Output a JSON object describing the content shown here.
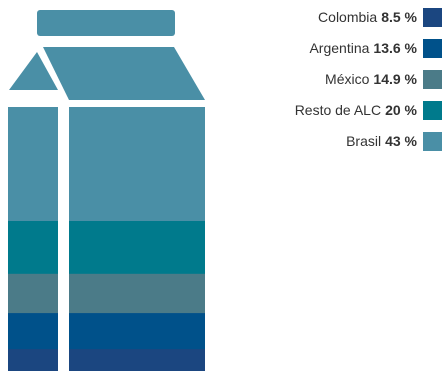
{
  "chart_data": {
    "type": "stacked-bar",
    "title": "",
    "unit": "%",
    "series": [
      {
        "name": "Colombia",
        "value": 8.5,
        "label": "8.5 %",
        "color": "#1b4680"
      },
      {
        "name": "Argentina",
        "value": 13.6,
        "label": "13.6 %",
        "color": "#00518a"
      },
      {
        "name": "México",
        "value": 14.9,
        "label": "14.9 %",
        "color": "#4b7b88"
      },
      {
        "name": "Resto de ALC",
        "value": 20,
        "label": "20 %",
        "color": "#007a8c"
      },
      {
        "name": "Brasil",
        "value": 43,
        "label": "43 %",
        "color": "#4a8fa6"
      }
    ]
  }
}
